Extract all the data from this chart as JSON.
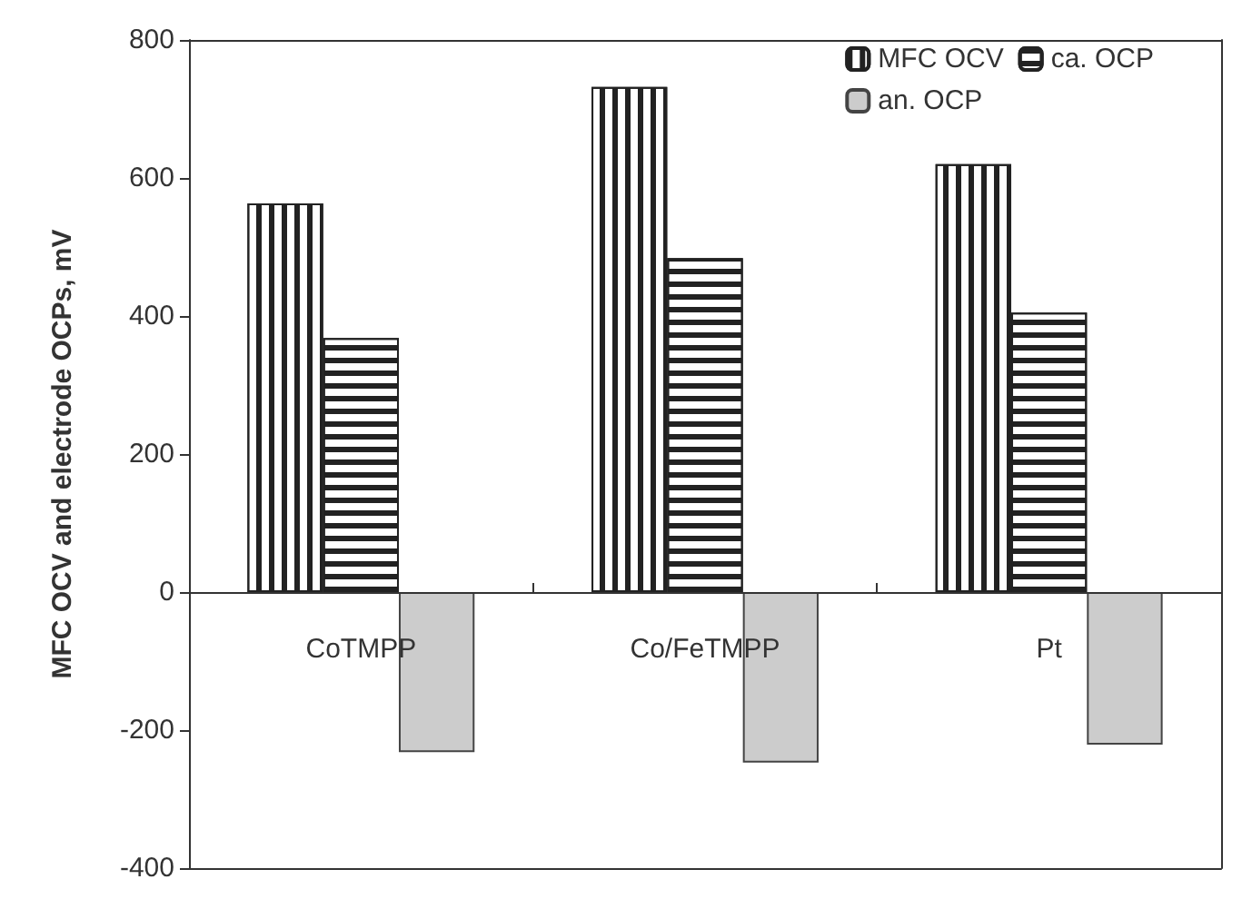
{
  "chart_data": {
    "type": "bar",
    "ylabel": "MFC OCV and electrode OCPs, mV",
    "categories": [
      "CoTMPP",
      "Co/FeTMPP",
      "Pt"
    ],
    "series": [
      {
        "name": "MFC OCV",
        "color": "#222222",
        "values": [
          563,
          732,
          620
        ]
      },
      {
        "name": "ca. OCP",
        "color": "#222222",
        "values": [
          368,
          484,
          405
        ]
      },
      {
        "name": "an. OCP",
        "color": "#cccccc",
        "values": [
          -232,
          -247,
          -221
        ]
      }
    ],
    "ylim": [
      -400,
      800
    ],
    "yticks": [
      -400,
      -200,
      0,
      200,
      400,
      600,
      800
    ],
    "grid": false,
    "legend": "top right"
  }
}
